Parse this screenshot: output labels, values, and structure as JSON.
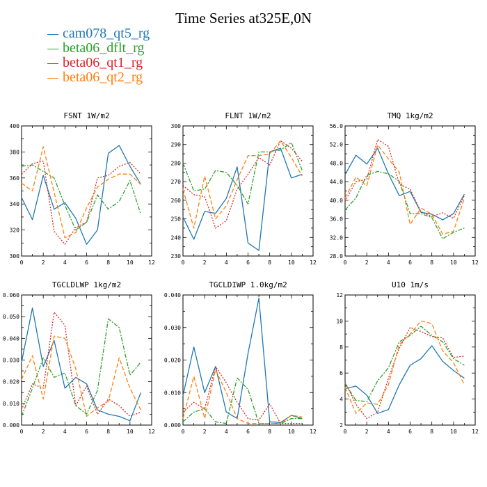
{
  "title": "Time Series at325E,0N",
  "legend": [
    {
      "name": "cam078_qt5_rg",
      "color": "#1f77b4"
    },
    {
      "name": "beta06_dflt_rg",
      "color": "#2ca02c"
    },
    {
      "name": "beta06_qt1_rg",
      "color": "#d62728"
    },
    {
      "name": "beta06_qt2_rg",
      "color": "#ff7f0e"
    }
  ],
  "chart_data": [
    {
      "type": "line",
      "title": "FSNT   1W/m2",
      "x": [
        0,
        1,
        2,
        3,
        4,
        5,
        6,
        7,
        8,
        9,
        10,
        11
      ],
      "xlim": [
        0,
        12
      ],
      "xticks": [
        "0",
        "2",
        "4",
        "6",
        "8",
        "10",
        "12"
      ],
      "ylim": [
        300,
        400
      ],
      "yticks": [
        "300",
        "320",
        "340",
        "360",
        "380",
        "400"
      ],
      "series": [
        {
          "name": "cam078_qt5_rg",
          "values": [
            345,
            328,
            362,
            336,
            341,
            329,
            309,
            320,
            379,
            385,
            369,
            355
          ]
        },
        {
          "name": "beta06_dflt_rg",
          "values": [
            369,
            370,
            365,
            360,
            339,
            320,
            326,
            347,
            336,
            342,
            358,
            332
          ]
        },
        {
          "name": "beta06_qt1_rg",
          "values": [
            363,
            371,
            373,
            319,
            309,
            322,
            326,
            360,
            362,
            369,
            372,
            363
          ]
        },
        {
          "name": "beta06_qt2_rg",
          "values": [
            356,
            350,
            384,
            349,
            314,
            318,
            337,
            353,
            359,
            363,
            363,
            355
          ]
        }
      ]
    },
    {
      "type": "line",
      "title": "FLNT   1W/m2",
      "x": [
        0,
        1,
        2,
        3,
        4,
        5,
        6,
        7,
        8,
        9,
        10,
        11
      ],
      "xlim": [
        0,
        12
      ],
      "xticks": [
        "0",
        "2",
        "4",
        "6",
        "8",
        "10",
        "12"
      ],
      "ylim": [
        230,
        300
      ],
      "yticks": [
        "230",
        "240",
        "250",
        "260",
        "270",
        "280",
        "290",
        "300"
      ],
      "series": [
        {
          "name": "cam078_qt5_rg",
          "values": [
            251,
            239,
            254,
            253,
            261,
            278,
            237,
            233,
            286,
            288,
            272,
            274
          ]
        },
        {
          "name": "beta06_dflt_rg",
          "values": [
            280,
            265,
            266,
            276,
            275,
            268,
            258,
            286,
            286,
            287,
            291,
            276
          ]
        },
        {
          "name": "beta06_qt1_rg",
          "values": [
            268,
            263,
            262,
            245,
            249,
            266,
            274,
            283,
            279,
            292,
            288,
            281
          ]
        },
        {
          "name": "beta06_qt2_rg",
          "values": [
            266,
            245,
            273,
            250,
            257,
            271,
            284,
            284,
            285,
            292,
            283,
            273
          ]
        }
      ]
    },
    {
      "type": "line",
      "title": "TMQ   1kg/m2",
      "x": [
        0,
        1,
        2,
        3,
        4,
        5,
        6,
        7,
        8,
        9,
        10,
        11
      ],
      "xlim": [
        0,
        12
      ],
      "xticks": [
        "0",
        "2",
        "4",
        "6",
        "8",
        "10",
        "12"
      ],
      "ylim": [
        28,
        56
      ],
      "yticks": [
        "28.0",
        "32.0",
        "36.0",
        "40.0",
        "44.0",
        "48.0",
        "52.0",
        "56.0"
      ],
      "series": [
        {
          "name": "cam078_qt5_rg",
          "values": [
            45.5,
            49.7,
            47.8,
            51.2,
            45.7,
            41.0,
            41.9,
            37.4,
            37.0,
            35.8,
            37.1,
            41.3
          ]
        },
        {
          "name": "beta06_dflt_rg",
          "values": [
            37.9,
            40.5,
            45.4,
            46.2,
            45.7,
            44.1,
            37.1,
            37.1,
            36.3,
            31.7,
            33.1,
            34.0
          ]
        },
        {
          "name": "beta06_qt1_rg",
          "values": [
            39.8,
            44.0,
            44.5,
            53.1,
            51.6,
            43.5,
            42.4,
            37.5,
            36.5,
            37.3,
            36.1,
            41.0
          ]
        },
        {
          "name": "beta06_qt2_rg",
          "values": [
            40.5,
            45.0,
            43.1,
            51.9,
            48.9,
            46.1,
            34.8,
            38.3,
            37.0,
            32.7,
            33.3,
            40.4
          ]
        }
      ]
    },
    {
      "type": "line",
      "title": "TGCLDLWP   1kg/m2",
      "x": [
        0,
        1,
        2,
        3,
        4,
        5,
        6,
        7,
        8,
        9,
        10,
        11
      ],
      "xlim": [
        0,
        12
      ],
      "xticks": [
        "0",
        "2",
        "4",
        "6",
        "8",
        "10",
        "12"
      ],
      "ylim": [
        0,
        0.06
      ],
      "yticks": [
        "0.000",
        "0.010",
        "0.020",
        "0.030",
        "0.040",
        "0.050",
        "0.060"
      ],
      "series": [
        {
          "name": "cam078_qt5_rg",
          "values": [
            0.029,
            0.054,
            0.027,
            0.039,
            0.017,
            0.022,
            0.019,
            0.007,
            0.005,
            0.004,
            0.002,
            0.015
          ]
        },
        {
          "name": "beta06_dflt_rg",
          "values": [
            0.004,
            0.017,
            0.031,
            0.022,
            0.024,
            0.009,
            0.005,
            0.016,
            0.049,
            0.045,
            0.023,
            0.029
          ]
        },
        {
          "name": "beta06_qt1_rg",
          "values": [
            0.007,
            0.019,
            0.017,
            0.052,
            0.046,
            0.009,
            0.018,
            0.005,
            0.012,
            0.009,
            0.004,
            0.006
          ]
        },
        {
          "name": "beta06_qt2_rg",
          "values": [
            0.021,
            0.032,
            0.012,
            0.041,
            0.04,
            0.026,
            0.004,
            0.008,
            0.011,
            0.031,
            0.017,
            0.007
          ]
        }
      ]
    },
    {
      "type": "line",
      "title": "TGCLDIWP   1.0kg/m2",
      "x": [
        0,
        1,
        2,
        3,
        4,
        5,
        6,
        7,
        8,
        9,
        10,
        11
      ],
      "xlim": [
        0,
        12
      ],
      "xticks": [
        "0",
        "2",
        "4",
        "6",
        "8",
        "10",
        "12"
      ],
      "ylim": [
        0,
        0.04
      ],
      "yticks": [
        "0.000",
        "0.010",
        "0.020",
        "0.030",
        "0.040"
      ],
      "series": [
        {
          "name": "cam078_qt5_rg",
          "values": [
            0.009,
            0.024,
            0.01,
            0.018,
            0.004,
            0.002,
            0.022,
            0.039,
            0.001,
            0.0008,
            0.003,
            0.002
          ]
        },
        {
          "name": "beta06_dflt_rg",
          "values": [
            0.001,
            0.004,
            0.005,
            0.001,
            0.0005,
            0.0145,
            0.011,
            0.0005,
            0.0005,
            0.0005,
            0.002,
            0.002
          ]
        },
        {
          "name": "beta06_qt1_rg",
          "values": [
            0.004,
            0.007,
            0.005,
            0.018,
            0.013,
            0.007,
            0.002,
            0.0015,
            0.0065,
            0.0005,
            0.0005,
            0.0005
          ]
        },
        {
          "name": "beta06_qt2_rg",
          "values": [
            0.002,
            0.015,
            0.002,
            0.017,
            0.01,
            0.002,
            0.0005,
            0.0005,
            0.0005,
            0.0005,
            0.003,
            0.0025
          ]
        }
      ]
    },
    {
      "type": "line",
      "title": "U10   1m/s",
      "x": [
        0,
        1,
        2,
        3,
        4,
        5,
        6,
        7,
        8,
        9,
        10,
        11
      ],
      "xlim": [
        0,
        12
      ],
      "xticks": [
        "0",
        "2",
        "4",
        "6",
        "8",
        "10",
        "12"
      ],
      "ylim": [
        2,
        12
      ],
      "yticks": [
        "2",
        "4",
        "6",
        "8",
        "10",
        "12"
      ],
      "series": [
        {
          "name": "cam078_qt5_rg",
          "values": [
            4.8,
            5.0,
            4.3,
            2.9,
            3.2,
            5.1,
            6.6,
            7.1,
            8.1,
            6.9,
            6.2,
            5.6
          ]
        },
        {
          "name": "beta06_dflt_rg",
          "values": [
            5.2,
            3.9,
            3.8,
            5.4,
            6.4,
            8.4,
            8.9,
            9.6,
            8.9,
            8.4,
            7.1,
            6.6
          ]
        },
        {
          "name": "beta06_qt1_rg",
          "values": [
            5.3,
            3.6,
            2.5,
            3.0,
            5.6,
            7.9,
            9.5,
            9.2,
            8.8,
            8.7,
            7.2,
            7.3
          ]
        },
        {
          "name": "beta06_qt2_rg",
          "values": [
            4.9,
            2.9,
            3.7,
            3.6,
            5.1,
            8.2,
            9.0,
            10.0,
            9.8,
            7.7,
            6.8,
            5.1
          ]
        }
      ]
    }
  ]
}
